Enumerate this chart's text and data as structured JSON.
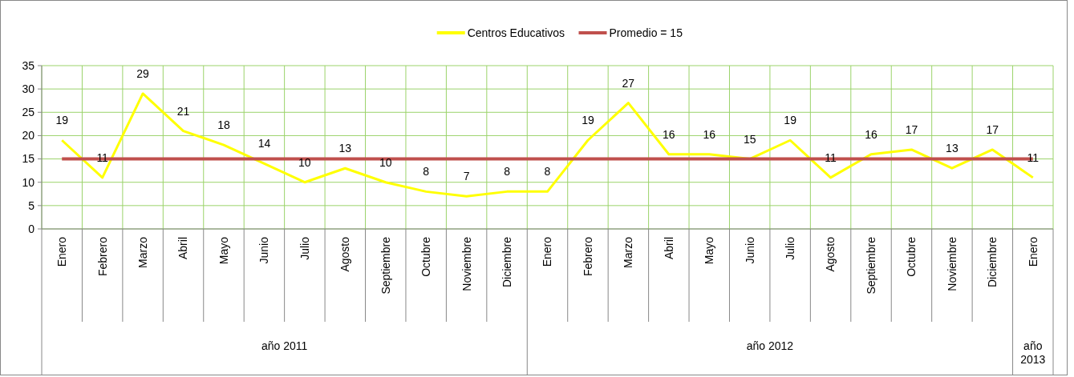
{
  "chart_data": {
    "type": "line",
    "categories": [
      "Enero",
      "Febrero",
      "Marzo",
      "Abril",
      "Mayo",
      "Junio",
      "Julio",
      "Agosto",
      "Septiembre",
      "Octubre",
      "Noviembre",
      "Diciembre",
      "Enero",
      "Febrero",
      "Marzo",
      "Abril",
      "Mayo",
      "Junio",
      "Julio",
      "Agosto",
      "Septiembre",
      "Octubre",
      "Noviembre",
      "Diciembre",
      "Enero"
    ],
    "series": [
      {
        "name": "Centros Educativos",
        "color": "#ffff00",
        "values": [
          19,
          11,
          29,
          21,
          18,
          14,
          10,
          13,
          10,
          8,
          7,
          8,
          8,
          19,
          27,
          16,
          16,
          15,
          19,
          11,
          16,
          17,
          13,
          17,
          11
        ],
        "data_labels": true
      },
      {
        "name": "Promedio = 15",
        "color": "#c0504d",
        "values": [
          15,
          15,
          15,
          15,
          15,
          15,
          15,
          15,
          15,
          15,
          15,
          15,
          15,
          15,
          15,
          15,
          15,
          15,
          15,
          15,
          15,
          15,
          15,
          15,
          15
        ]
      }
    ],
    "annotations": [
      "año 2011",
      "año 2012",
      "año 2013"
    ],
    "ylim": [
      0,
      35
    ],
    "yticks": [
      0,
      5,
      10,
      15,
      20,
      25,
      30,
      35
    ],
    "grid": true,
    "legend": "top",
    "marker": "none",
    "line_style": "solid"
  }
}
